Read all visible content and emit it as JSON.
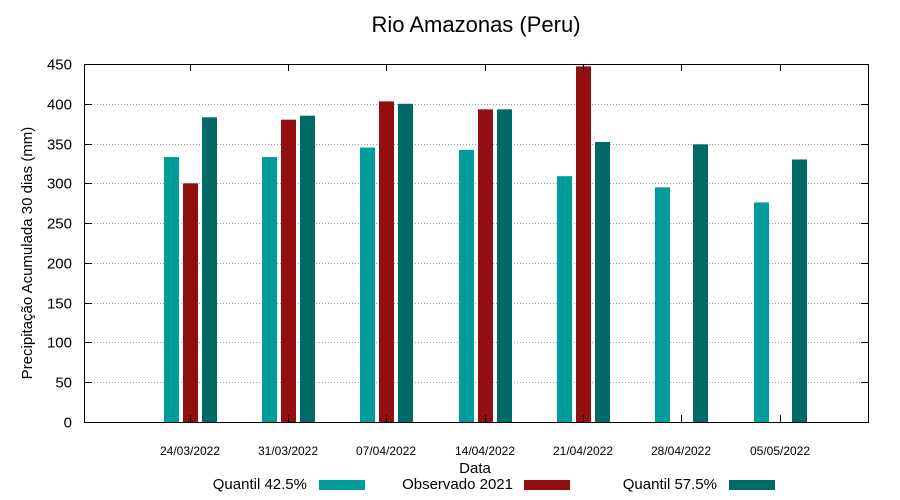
{
  "chart_data": {
    "type": "bar",
    "title": "Rio Amazonas (Peru)",
    "xlabel": "Data",
    "ylabel": "Precipitação Acumulada 30 dias (mm)",
    "ylim": [
      0,
      450
    ],
    "yticks": [
      0,
      50,
      100,
      150,
      200,
      250,
      300,
      350,
      400,
      450
    ],
    "grid": true,
    "legend_position": "bottom",
    "categories": [
      "24/03/2022",
      "31/03/2022",
      "07/04/2022",
      "14/04/2022",
      "21/04/2022",
      "28/04/2022",
      "05/05/2022"
    ],
    "series": [
      {
        "name": "Quantil 42.5%",
        "color": "#009b9b",
        "values": [
          333,
          333,
          345,
          342,
          309,
          295,
          276
        ]
      },
      {
        "name": "Observado 2021",
        "color": "#920f0f",
        "values": [
          300,
          380,
          403,
          393,
          447,
          null,
          null
        ]
      },
      {
        "name": "Quantil 57.5%",
        "color": "#006a66",
        "values": [
          383,
          385,
          400,
          393,
          352,
          349,
          330
        ]
      }
    ]
  }
}
